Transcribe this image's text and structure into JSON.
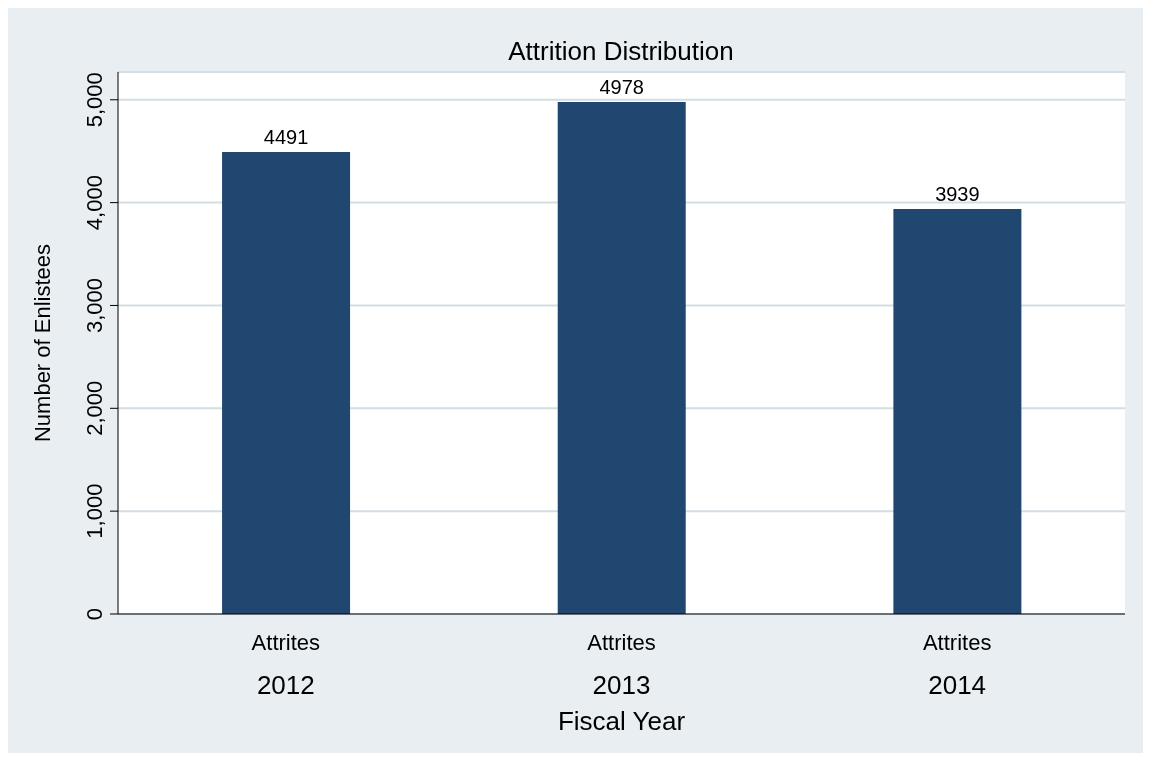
{
  "chart_data": {
    "type": "bar",
    "title": "Attrition Distribution",
    "xlabel": "Fiscal Year",
    "ylabel": "Number of Enlistees",
    "categories": [
      "Attrites\n2012",
      "Attrites\n2013",
      "Attrites\n2014"
    ],
    "values": [
      4491,
      4978,
      3939
    ],
    "color": "#1f476f",
    "data_labels": true,
    "ylim": [
      0,
      5270
    ],
    "yticks": [
      0,
      {
        "value": 1000,
        "label": "1,000"
      },
      {
        "value": 2000,
        "label": "2,000"
      },
      {
        "value": 3000,
        "label": "3,000"
      },
      {
        "value": 4000,
        "label": "4,000"
      },
      {
        "value": 5000,
        "label": "5,000"
      }
    ],
    "grid": "y"
  }
}
